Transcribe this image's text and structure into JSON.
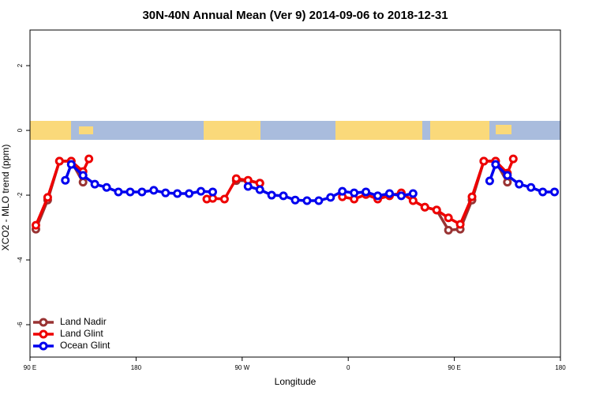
{
  "chart_data": {
    "type": "line",
    "title": "30N-40N Annual Mean (Ver 9)   2014-09-06 to 2018-12-31",
    "x_label": "Longitude",
    "y_label": "XCO2 - MLO trend (ppm)",
    "xlim": [
      90,
      540
    ],
    "ylim": [
      -7,
      3.1
    ],
    "xticks": [
      {
        "value": 90,
        "label": "90 E"
      },
      180,
      {
        "value": 270,
        "label": "90 W"
      },
      {
        "value": 360,
        "label": "0"
      },
      {
        "value": 450,
        "label": "90 E"
      },
      {
        "value": 540,
        "label": "180"
      }
    ],
    "yticks": [
      2,
      0,
      -2,
      -4,
      -6
    ],
    "legend": "bottom-left",
    "series": [
      {
        "name": "Land Nadir",
        "color": "#993333",
        "x": [
          95,
          105,
          115,
          125,
          135,
          null,
          265,
          275,
          285,
          null,
          425,
          435,
          445,
          455,
          465,
          475,
          485,
          495
        ],
        "values": [
          -3.05,
          -2.15,
          -0.95,
          -0.95,
          -1.6,
          null,
          -1.55,
          -1.55,
          -1.63,
          null,
          -2.37,
          -2.46,
          -3.08,
          -3.05,
          -2.15,
          -0.95,
          -0.95,
          -1.6
        ]
      },
      {
        "name": "Land Glint",
        "color": "#ee0000",
        "x": [
          95,
          105,
          115,
          125,
          135,
          140,
          null,
          240,
          245,
          255,
          265,
          275,
          285,
          null,
          355,
          365,
          375,
          385,
          395,
          405,
          415,
          425,
          435,
          445,
          455,
          465,
          475,
          485,
          495,
          500
        ],
        "values": [
          -2.93,
          -2.07,
          -0.95,
          -0.95,
          -1.27,
          -0.88,
          null,
          -2.12,
          -2.1,
          -2.12,
          -1.49,
          -1.54,
          -1.63,
          null,
          -2.05,
          -2.12,
          -1.98,
          -2.12,
          -2.02,
          -1.93,
          -2.17,
          -2.37,
          -2.46,
          -2.7,
          -2.9,
          -2.05,
          -0.95,
          -0.95,
          -1.32,
          -0.88
        ]
      },
      {
        "name": "Ocean Glint",
        "color": "#0000ee",
        "x": [
          120,
          125,
          135,
          145,
          155,
          165,
          175,
          185,
          195,
          205,
          215,
          225,
          235,
          245,
          null,
          275,
          285,
          295,
          305,
          315,
          325,
          335,
          345,
          355,
          365,
          375,
          385,
          395,
          405,
          415,
          null,
          480,
          485,
          495,
          505,
          515,
          525,
          535
        ],
        "values": [
          -1.54,
          -1.05,
          -1.39,
          -1.66,
          -1.76,
          -1.9,
          -1.9,
          -1.9,
          -1.85,
          -1.93,
          -1.95,
          -1.95,
          -1.88,
          -1.9,
          null,
          -1.73,
          -1.83,
          -2.0,
          -2.02,
          -2.15,
          -2.17,
          -2.17,
          -2.07,
          -1.88,
          -1.93,
          -1.9,
          -2.02,
          -1.95,
          -2.02,
          -1.95,
          null,
          -1.56,
          -1.05,
          -1.39,
          -1.66,
          -1.76,
          -1.9,
          -1.9
        ]
      }
    ]
  }
}
